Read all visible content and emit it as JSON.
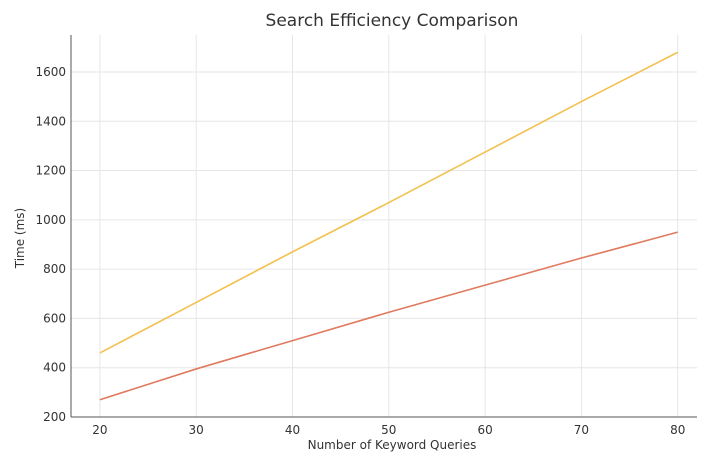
{
  "chart_data": {
    "type": "line",
    "title": "Search Efficiency Comparison",
    "xlabel": "Number of Keyword Queries",
    "ylabel": "Time (ms)",
    "x": [
      20,
      30,
      40,
      50,
      60,
      70,
      80
    ],
    "xlim": [
      17,
      82
    ],
    "ylim": [
      200,
      1750
    ],
    "xticks": [
      20,
      30,
      40,
      50,
      60,
      70,
      80
    ],
    "yticks": [
      200,
      400,
      600,
      800,
      1000,
      1200,
      1400,
      1600
    ],
    "grid": true,
    "legend": "none",
    "series": [
      {
        "color": "#f2c14e",
        "values": [
          460,
          665,
          870,
          1070,
          1275,
          1480,
          1680
        ]
      },
      {
        "color": "#e07a5f",
        "values": [
          270,
          395,
          510,
          625,
          735,
          845,
          950
        ]
      }
    ]
  }
}
